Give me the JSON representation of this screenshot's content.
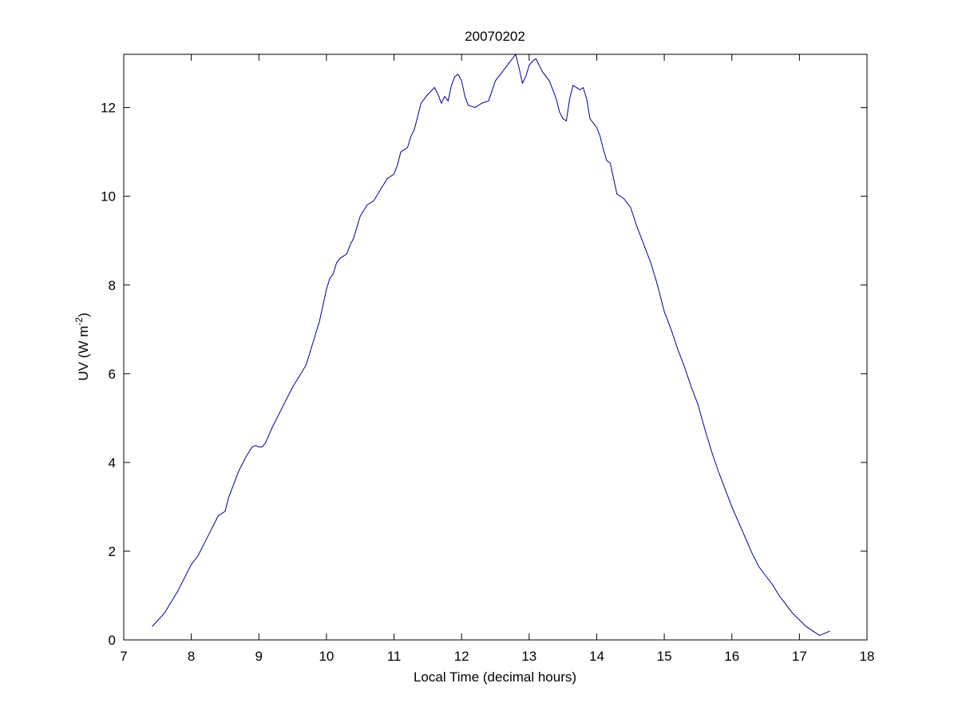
{
  "chart_data": {
    "type": "line",
    "title": "20070202",
    "xlabel": "Local Time (decimal hours)",
    "ylabel_main": "UV (W m",
    "ylabel_sup": "-2",
    "ylabel_close": ")",
    "xlim": [
      7,
      18
    ],
    "ylim": [
      0,
      13.2
    ],
    "xticks": [
      7,
      8,
      9,
      10,
      11,
      12,
      13,
      14,
      15,
      16,
      17,
      18
    ],
    "yticks": [
      0,
      2,
      4,
      6,
      8,
      10,
      12
    ],
    "grid": false,
    "line_color": "#00008b",
    "series": [
      {
        "x": [
          7.42,
          7.6,
          7.8,
          8.0,
          8.1,
          8.2,
          8.3,
          8.4,
          8.5,
          8.55,
          8.6,
          8.7,
          8.8,
          8.9,
          8.95,
          9.0,
          9.05,
          9.1,
          9.2,
          9.3,
          9.4,
          9.5,
          9.6,
          9.7,
          9.8,
          9.9,
          10.0,
          10.05,
          10.1,
          10.15,
          10.2,
          10.3,
          10.35,
          10.4,
          10.45,
          10.5,
          10.6,
          10.7,
          10.8,
          10.9,
          11.0,
          11.05,
          11.1,
          11.15,
          11.2,
          11.25,
          11.3,
          11.35,
          11.4,
          11.5,
          11.6,
          11.65,
          11.7,
          11.75,
          11.8,
          11.85,
          11.9,
          11.95,
          12.0,
          12.05,
          12.1,
          12.2,
          12.3,
          12.4,
          12.5,
          12.6,
          12.7,
          12.75,
          12.8,
          12.85,
          12.9,
          12.95,
          13.0,
          13.05,
          13.1,
          13.15,
          13.2,
          13.3,
          13.4,
          13.45,
          13.5,
          13.55,
          13.6,
          13.65,
          13.7,
          13.75,
          13.8,
          13.85,
          13.9,
          14.0,
          14.05,
          14.1,
          14.15,
          14.2,
          14.25,
          14.3,
          14.4,
          14.5,
          14.6,
          14.7,
          14.8,
          14.9,
          15.0,
          15.1,
          15.2,
          15.3,
          15.4,
          15.5,
          15.6,
          15.7,
          15.8,
          15.9,
          16.0,
          16.1,
          16.2,
          16.3,
          16.4,
          16.5,
          16.6,
          16.7,
          16.8,
          16.9,
          17.0,
          17.1,
          17.2,
          17.3,
          17.45
        ],
        "y": [
          0.3,
          0.6,
          1.1,
          1.7,
          1.9,
          2.2,
          2.5,
          2.8,
          2.9,
          3.2,
          3.4,
          3.8,
          4.1,
          4.35,
          4.38,
          4.35,
          4.35,
          4.45,
          4.8,
          5.1,
          5.4,
          5.7,
          5.95,
          6.2,
          6.7,
          7.2,
          7.9,
          8.15,
          8.25,
          8.5,
          8.6,
          8.7,
          8.9,
          9.05,
          9.3,
          9.55,
          9.8,
          9.9,
          10.15,
          10.4,
          10.5,
          10.7,
          11.0,
          11.05,
          11.1,
          11.35,
          11.5,
          11.8,
          12.1,
          12.3,
          12.45,
          12.3,
          12.1,
          12.25,
          12.15,
          12.5,
          12.7,
          12.75,
          12.6,
          12.25,
          12.05,
          12.0,
          12.1,
          12.15,
          12.6,
          12.8,
          13.0,
          13.1,
          13.2,
          12.9,
          12.55,
          12.7,
          12.95,
          13.05,
          13.1,
          12.95,
          12.8,
          12.6,
          12.2,
          11.9,
          11.75,
          11.7,
          12.2,
          12.5,
          12.45,
          12.4,
          12.45,
          12.2,
          11.75,
          11.55,
          11.35,
          11.05,
          10.8,
          10.75,
          10.4,
          10.05,
          9.95,
          9.75,
          9.3,
          8.9,
          8.5,
          8.0,
          7.4,
          7.0,
          6.55,
          6.15,
          5.7,
          5.3,
          4.75,
          4.25,
          3.8,
          3.4,
          3.0,
          2.65,
          2.3,
          1.95,
          1.65,
          1.45,
          1.25,
          1.0,
          0.8,
          0.6,
          0.45,
          0.3,
          0.2,
          0.1,
          0.2
        ]
      }
    ]
  }
}
